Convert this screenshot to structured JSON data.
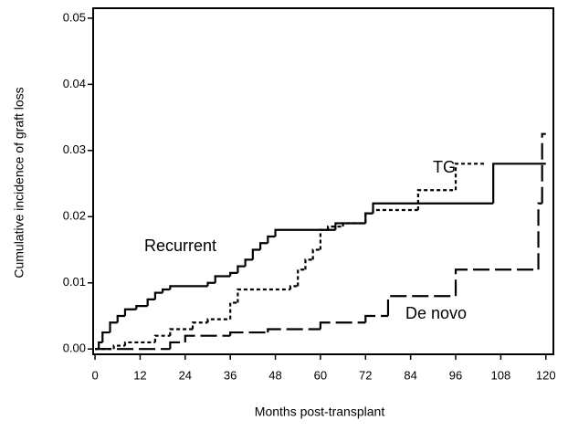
{
  "chart_data": {
    "type": "step",
    "x_label": "Months post-transplant",
    "y_label": "Cumulative incidence of graft loss",
    "xlim": [
      -0.5,
      122
    ],
    "ylim": [
      -0.0008,
      0.0515
    ],
    "xticks": [
      0,
      12,
      24,
      36,
      48,
      60,
      72,
      84,
      96,
      108,
      120
    ],
    "yticks": [
      {
        "value": 0,
        "label": "0.00"
      },
      0.01,
      0.02,
      0.03,
      0.04,
      0.05
    ],
    "annotations": [
      "TG",
      "Recurrent",
      "De novo"
    ],
    "series": [
      {
        "color": "#000000",
        "dash": "none",
        "x": [
          0,
          1,
          2,
          4,
          6,
          8,
          11,
          14,
          16,
          18,
          20,
          30,
          32,
          36,
          38,
          40,
          42,
          44,
          46,
          48,
          64,
          72,
          74,
          106,
          120
        ],
        "values": [
          0,
          0.001,
          0.0025,
          0.004,
          0.005,
          0.006,
          0.0065,
          0.0075,
          0.0085,
          0.009,
          0.0095,
          0.01,
          0.011,
          0.0115,
          0.0125,
          0.0135,
          0.015,
          0.016,
          0.017,
          0.018,
          0.019,
          0.0205,
          0.022,
          0.028,
          0.028
        ]
      },
      {
        "color": "#000000",
        "dash": "4 3",
        "x": [
          0,
          5,
          8,
          16,
          20,
          26,
          30,
          36,
          38,
          52,
          54,
          56,
          58,
          60,
          62,
          66,
          72,
          74,
          86,
          96,
          104
        ],
        "values": [
          0,
          0.0005,
          0.001,
          0.002,
          0.003,
          0.004,
          0.0045,
          0.007,
          0.009,
          0.0095,
          0.012,
          0.0135,
          0.015,
          0.018,
          0.0185,
          0.019,
          0.0205,
          0.021,
          0.024,
          0.028,
          0.028
        ]
      },
      {
        "color": "#000000",
        "dash": "18 6",
        "x": [
          0,
          20,
          24,
          36,
          46,
          60,
          72,
          78,
          96,
          118,
          119,
          120
        ],
        "values": [
          0,
          0.001,
          0.002,
          0.0025,
          0.003,
          0.004,
          0.005,
          0.008,
          0.012,
          0.022,
          0.0325,
          0.0325
        ]
      }
    ]
  }
}
